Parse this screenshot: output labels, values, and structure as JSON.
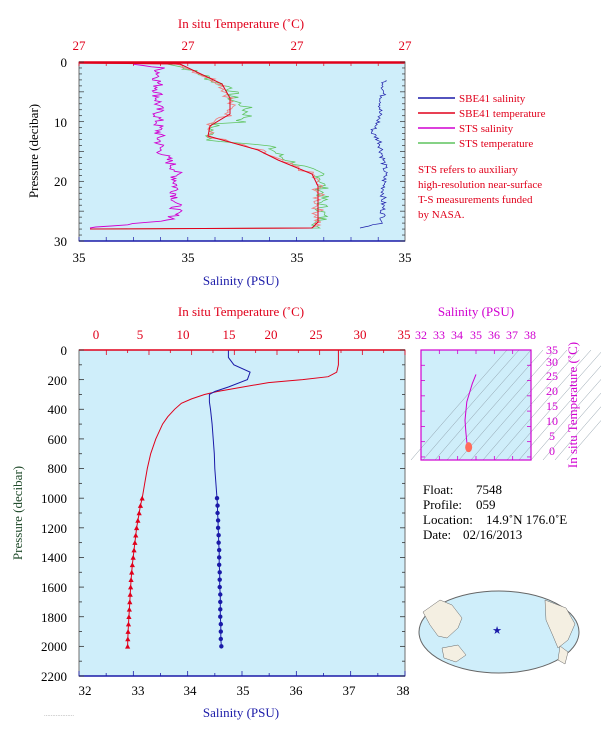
{
  "colors": {
    "panel_bg": "#cfeefa",
    "salinity": "#1a1aa8",
    "temperature": "#e0001b",
    "sts_salinity": "#d000d0",
    "sts_temperature": "#5ec45e",
    "ts_axis": "#d000d0"
  },
  "top": {
    "temp_axis_title": "In situ Temperature (˚C)",
    "temp_ticks": [
      "27",
      "27",
      "27",
      "27"
    ],
    "sal_axis_title": "Salinity (PSU)",
    "sal_ticks": [
      "35",
      "35",
      "35",
      "35"
    ],
    "pressure_axis_title": "Pressure (decibar)",
    "pressure_ticks": [
      "0",
      "10",
      "20",
      "30"
    ],
    "legend": [
      {
        "label": "SBE41 salinity",
        "color": "#1a1aa8"
      },
      {
        "label": "SBE41 temperature",
        "color": "#e0001b"
      },
      {
        "label": "STS salinity",
        "color": "#d000d0"
      },
      {
        "label": "STS temperature",
        "color": "#5ec45e"
      }
    ],
    "note": [
      "STS refers to auxiliary",
      "high-resolution near-surface",
      "T-S measurements funded",
      "by NASA."
    ]
  },
  "main": {
    "temp_axis_title": "In situ Temperature (˚C)",
    "temp_ticks": [
      "0",
      "5",
      "10",
      "15",
      "20",
      "25",
      "30",
      "35"
    ],
    "sal_axis_title": "Salinity (PSU)",
    "sal_ticks": [
      "32",
      "33",
      "34",
      "35",
      "36",
      "37",
      "38"
    ],
    "pressure_axis_title": "Pressure (decibar)",
    "pressure_ticks": [
      "0",
      "200",
      "400",
      "600",
      "800",
      "1000",
      "1200",
      "1400",
      "1600",
      "1800",
      "2000",
      "2200"
    ]
  },
  "ts": {
    "sal_axis_title": "Salinity (PSU)",
    "sal_ticks": [
      "32",
      "33",
      "34",
      "35",
      "36",
      "37",
      "38"
    ],
    "temp_axis_title": "In situ Temperature (˚C)",
    "temp_ticks": [
      "0",
      "5",
      "10",
      "15",
      "20",
      "25",
      "30",
      "35"
    ]
  },
  "info": {
    "float_label": "Float:",
    "float_value": "7548",
    "profile_label": "Profile:",
    "profile_value": "059",
    "location_label": "Location:",
    "location_value": "14.9˚N  176.0˚E",
    "date_label": "Date:",
    "date_value": "02/16/2013"
  },
  "chart_data": [
    {
      "type": "line",
      "panel": "near-surface",
      "xlabel": "Salinity (PSU)",
      "x2label": "In situ Temperature (˚C)",
      "ylabel": "Pressure (decibar)",
      "ylim": [
        30,
        0
      ],
      "series": [
        {
          "name": "SBE41 salinity",
          "pressure": [
            3,
            5,
            8,
            10,
            13,
            15,
            18,
            20,
            23,
            25,
            27,
            28
          ]
        },
        {
          "name": "SBE41 temperature",
          "pressure": [
            0,
            28
          ]
        },
        {
          "name": "STS salinity",
          "pressure": [
            0.5,
            2,
            4,
            6,
            8,
            10,
            12,
            14,
            16,
            18,
            20,
            22,
            24,
            26,
            27.5
          ]
        },
        {
          "name": "STS temperature",
          "pressure": [
            0.5,
            2,
            4,
            6,
            8,
            10,
            12,
            14,
            16,
            18,
            20,
            22,
            24,
            26,
            27.5
          ]
        }
      ]
    },
    {
      "type": "line",
      "panel": "full-profile",
      "xlabel": "Salinity (PSU)",
      "x2label": "In situ Temperature (˚C)",
      "ylabel": "Pressure (decibar)",
      "xlim": [
        32,
        38
      ],
      "x2lim": [
        0,
        35
      ],
      "ylim": [
        2200,
        0
      ],
      "series": [
        {
          "name": "Salinity",
          "pressure": [
            0,
            50,
            100,
            150,
            200,
            250,
            280,
            300,
            350,
            400,
            500,
            600,
            700,
            800,
            900,
            1000,
            1050,
            1100,
            1150,
            1200,
            1250,
            1300,
            1350,
            1400,
            1450,
            1500,
            1550,
            1600,
            1650,
            1700,
            1750,
            1800,
            1850,
            1900,
            1950,
            2000
          ],
          "values": [
            34.75,
            34.75,
            34.85,
            35.15,
            35.1,
            34.75,
            34.5,
            34.4,
            34.4,
            34.42,
            34.45,
            34.47,
            34.49,
            34.5,
            34.52,
            34.54,
            34.55,
            34.55,
            34.56,
            34.56,
            34.57,
            34.57,
            34.58,
            34.58,
            34.58,
            34.59,
            34.59,
            34.59,
            34.6,
            34.6,
            34.6,
            34.6,
            34.61,
            34.61,
            34.61,
            34.62
          ]
        },
        {
          "name": "Temperature",
          "pressure": [
            0,
            100,
            150,
            180,
            200,
            220,
            250,
            280,
            300,
            330,
            360,
            400,
            450,
            500,
            600,
            700,
            800,
            900,
            1000,
            1050,
            1100,
            1150,
            1200,
            1250,
            1300,
            1350,
            1400,
            1450,
            1500,
            1550,
            1600,
            1650,
            1700,
            1750,
            1800,
            1850,
            1900,
            1950,
            2000
          ],
          "values": [
            27.2,
            27.2,
            27.0,
            26.0,
            23.0,
            19.0,
            16.0,
            13.0,
            11.5,
            10.0,
            8.8,
            8.0,
            7.2,
            6.6,
            5.8,
            5.2,
            4.8,
            4.5,
            4.2,
            4.0,
            3.85,
            3.7,
            3.55,
            3.45,
            3.35,
            3.25,
            3.15,
            3.05,
            2.98,
            2.9,
            2.85,
            2.8,
            2.75,
            2.7,
            2.65,
            2.6,
            2.55,
            2.52,
            2.5
          ]
        }
      ]
    },
    {
      "type": "line",
      "panel": "T-S diagram",
      "xlabel": "Salinity (PSU)",
      "ylabel": "In situ Temperature (˚C)",
      "xlim": [
        32,
        38
      ],
      "ylim": [
        -1,
        35
      ],
      "series": [
        {
          "name": "T-S",
          "x": [
            35.0,
            34.8,
            34.5,
            34.4,
            34.45,
            34.5,
            34.55,
            34.6
          ],
          "y": [
            27,
            24,
            18,
            12,
            8,
            5,
            3.5,
            2.5
          ]
        }
      ]
    }
  ]
}
